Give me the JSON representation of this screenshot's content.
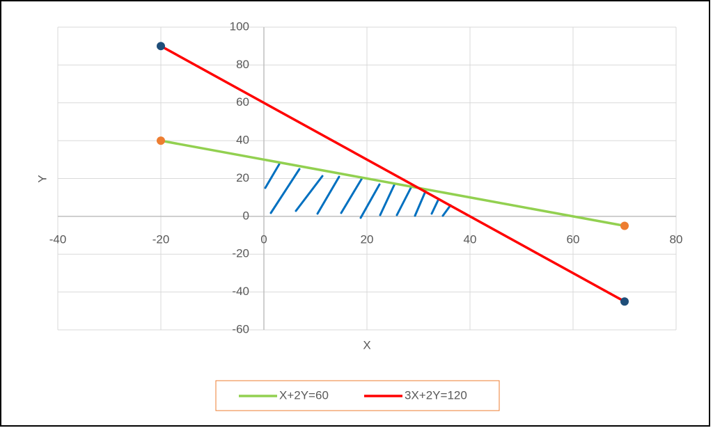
{
  "chart_data": {
    "type": "line",
    "x_label": "X",
    "y_label": "Y",
    "x": [
      -20,
      70
    ],
    "series": [
      {
        "name": "X+2Y=60",
        "color": "#92d050",
        "marker_color": "#ed7d31",
        "values": [
          40,
          -5
        ]
      },
      {
        "name": "3X+2Y=120",
        "color": "#ff0000",
        "marker_color": "#1f4e79",
        "values": [
          90,
          -45
        ]
      }
    ],
    "xlim": [
      -40,
      80
    ],
    "xticks": [
      -40,
      -20,
      0,
      20,
      40,
      60,
      80
    ],
    "ylim": [
      -60,
      100
    ],
    "yticks": [
      -60,
      -40,
      -20,
      0,
      20,
      40,
      60,
      80,
      100
    ],
    "grid": true,
    "legend": "bottom"
  }
}
